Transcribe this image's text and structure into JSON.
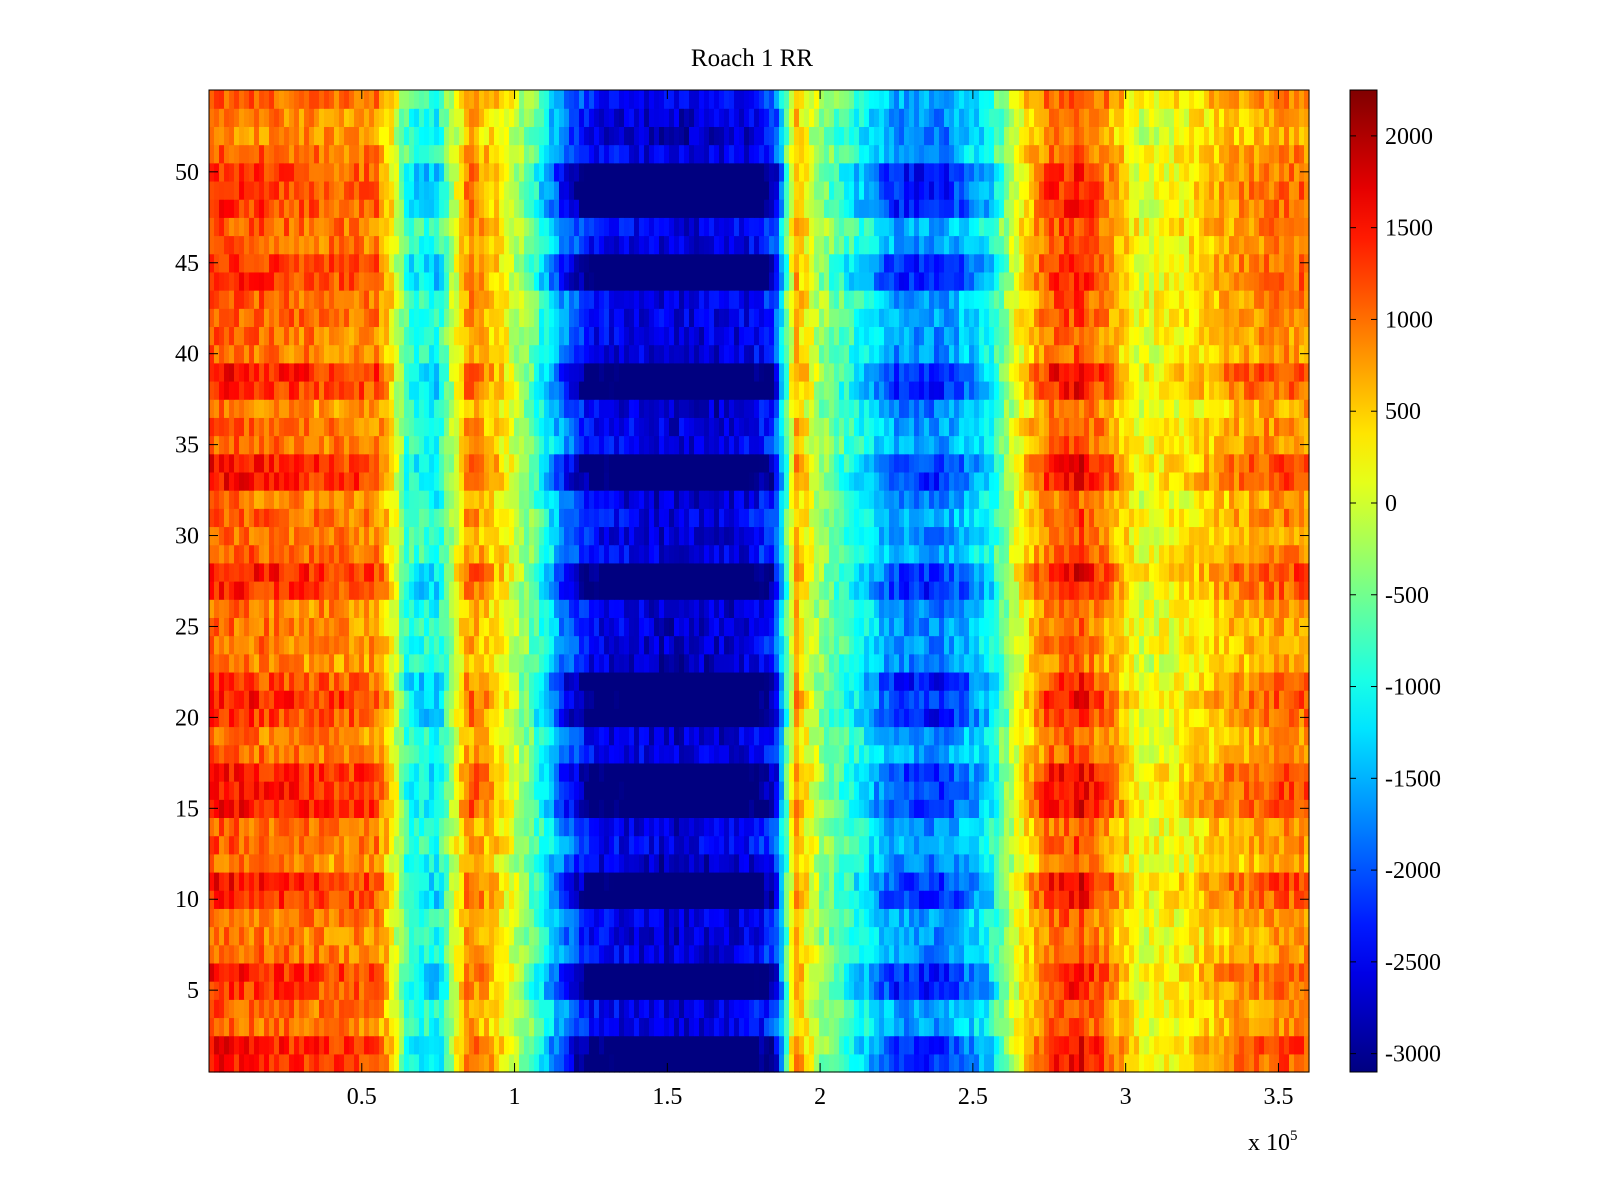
{
  "chart_data": {
    "type": "heatmap",
    "title": "Roach 1 RR",
    "xlabel": "",
    "ylabel": "",
    "x_exponent_label": "x 10",
    "x_exponent_power": "5",
    "x_scale": 100000,
    "xlim": [
      0,
      360000
    ],
    "ylim": [
      0.5,
      54.5
    ],
    "rows": 54,
    "x_ticks": [
      50000,
      100000,
      150000,
      200000,
      250000,
      300000,
      350000
    ],
    "x_tick_labels": [
      "0.5",
      "1",
      "1.5",
      "2",
      "2.5",
      "3",
      "3.5"
    ],
    "y_ticks": [
      5,
      10,
      15,
      20,
      25,
      30,
      35,
      40,
      45,
      50
    ],
    "y_tick_labels": [
      "5",
      "10",
      "15",
      "20",
      "25",
      "30",
      "35",
      "40",
      "45",
      "50"
    ],
    "colorbar": {
      "colormap": "jet",
      "clim": [
        -3100,
        2250
      ],
      "ticks": [
        2000,
        1500,
        1000,
        500,
        0,
        -500,
        -1000,
        -1500,
        -2000,
        -2500,
        -3000
      ],
      "tick_labels": [
        "2000",
        "1500",
        "1000",
        "500",
        "0",
        "-500",
        "-1000",
        "-1500",
        "-2000",
        "-2500",
        "-3000"
      ]
    },
    "column_profile": {
      "x": [
        0,
        20000,
        40000,
        55000,
        60000,
        65000,
        75000,
        85000,
        95000,
        105000,
        115000,
        125000,
        150000,
        175000,
        185000,
        192000,
        200000,
        210000,
        225000,
        240000,
        255000,
        265000,
        275000,
        285000,
        295000,
        305000,
        320000,
        335000,
        350000,
        360000
      ],
      "values": [
        1200,
        1100,
        1000,
        950,
        300,
        -900,
        -1100,
        900,
        400,
        -500,
        -1800,
        -2700,
        -3000,
        -2900,
        -2400,
        700,
        -300,
        -900,
        -1800,
        -1900,
        -1200,
        200,
        1100,
        1300,
        800,
        100,
        300,
        700,
        900,
        900
      ]
    },
    "row_strong_rows": [
      1,
      2,
      5,
      6,
      10,
      11,
      15,
      16,
      17,
      20,
      21,
      22,
      27,
      28,
      33,
      34,
      38,
      39,
      44,
      45,
      48,
      49,
      50
    ]
  }
}
